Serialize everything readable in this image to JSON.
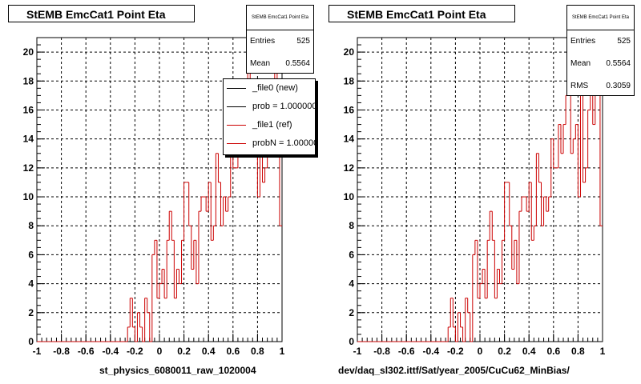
{
  "chart_data": [
    {
      "type": "bar",
      "title": "StEMB EmcCat1 Point Eta",
      "xlabel": "st_physics_6080011_raw_1020004",
      "ylabel": "",
      "xlim": [
        -1,
        1
      ],
      "ylim": [
        0,
        21
      ],
      "x_ticks": [
        "-1",
        "-0.8",
        "-0.6",
        "-0.4",
        "-0.2",
        "0",
        "0.2",
        "0.4",
        "0.6",
        "0.8",
        "1"
      ],
      "y_ticks": [
        "0",
        "2",
        "4",
        "6",
        "8",
        "10",
        "12",
        "14",
        "16",
        "18",
        "20"
      ],
      "grid": true,
      "bin_width": 0.02,
      "x": [
        -0.99,
        -0.97,
        -0.95,
        -0.93,
        -0.91,
        -0.89,
        -0.87,
        -0.85,
        -0.83,
        -0.81,
        -0.79,
        -0.77,
        -0.75,
        -0.73,
        -0.71,
        -0.69,
        -0.67,
        -0.65,
        -0.63,
        -0.61,
        -0.59,
        -0.57,
        -0.55,
        -0.53,
        -0.51,
        -0.49,
        -0.47,
        -0.45,
        -0.43,
        -0.41,
        -0.39,
        -0.37,
        -0.35,
        -0.33,
        -0.31,
        -0.29,
        -0.27,
        -0.25,
        -0.23,
        -0.21,
        -0.19,
        -0.17,
        -0.15,
        -0.13,
        -0.11,
        -0.09,
        -0.07,
        -0.05,
        -0.03,
        -0.01,
        0.01,
        0.03,
        0.05,
        0.07,
        0.09,
        0.11,
        0.13,
        0.15,
        0.17,
        0.19,
        0.21,
        0.23,
        0.25,
        0.27,
        0.29,
        0.31,
        0.33,
        0.35,
        0.37,
        0.39,
        0.41,
        0.43,
        0.45,
        0.47,
        0.49,
        0.51,
        0.53,
        0.55,
        0.57,
        0.59,
        0.61,
        0.63,
        0.65,
        0.67,
        0.69,
        0.71,
        0.73,
        0.75,
        0.77,
        0.79,
        0.81,
        0.83,
        0.85,
        0.87,
        0.89,
        0.91,
        0.93,
        0.95,
        0.97,
        0.99
      ],
      "series": [
        {
          "name": "_file1 (ref)",
          "color": "#cc0000",
          "values": [
            0,
            0,
            0,
            0,
            0,
            0,
            0,
            0,
            0,
            0,
            0,
            0,
            0,
            0,
            0,
            0,
            0,
            0,
            0,
            0,
            0,
            0,
            0,
            0,
            0,
            0,
            0,
            0,
            0,
            0,
            0,
            0,
            0,
            0,
            0,
            0,
            0,
            1,
            3,
            1,
            0,
            2,
            1,
            0,
            3,
            2,
            0,
            6,
            7,
            3,
            4,
            5,
            3,
            7,
            9,
            7,
            3,
            5,
            4,
            7,
            11,
            11,
            8,
            5,
            7,
            4,
            9,
            10,
            10,
            9,
            11,
            7,
            8,
            13,
            11,
            8,
            10,
            9,
            10,
            14,
            12,
            12,
            15,
            13,
            15,
            17,
            19,
            13,
            14,
            15,
            10,
            18,
            11,
            12,
            16,
            18,
            15,
            20,
            17,
            8
          ]
        }
      ],
      "stats": {
        "header": "StEMB EmcCat1 Point Eta",
        "entries_label": "Entries",
        "entries_value": "525",
        "mean_label": "Mean",
        "mean_value": "0.5564"
      },
      "legend": [
        {
          "label": "_file0 (new)",
          "color": "#000000"
        },
        {
          "label": "prob = 1.000000",
          "color": "#000000"
        },
        {
          "label": "_file1 (ref)",
          "color": "#cc0000"
        },
        {
          "label": "probN = 1.000000",
          "color": "#cc0000"
        }
      ]
    },
    {
      "type": "bar",
      "title": "StEMB EmcCat1 Point Eta",
      "xlabel": "dev/daq_sl302.ittf/Sat/year_2005/CuCu62_MinBias/",
      "ylabel": "",
      "xlim": [
        -1,
        1
      ],
      "ylim": [
        0,
        21
      ],
      "x_ticks": [
        "-1",
        "-0.8",
        "-0.6",
        "-0.4",
        "-0.2",
        "0",
        "0.2",
        "0.4",
        "0.6",
        "0.8",
        "1"
      ],
      "y_ticks": [
        "0",
        "2",
        "4",
        "6",
        "8",
        "10",
        "12",
        "14",
        "16",
        "18",
        "20"
      ],
      "grid": true,
      "bin_width": 0.02,
      "x": [
        -0.99,
        -0.97,
        -0.95,
        -0.93,
        -0.91,
        -0.89,
        -0.87,
        -0.85,
        -0.83,
        -0.81,
        -0.79,
        -0.77,
        -0.75,
        -0.73,
        -0.71,
        -0.69,
        -0.67,
        -0.65,
        -0.63,
        -0.61,
        -0.59,
        -0.57,
        -0.55,
        -0.53,
        -0.51,
        -0.49,
        -0.47,
        -0.45,
        -0.43,
        -0.41,
        -0.39,
        -0.37,
        -0.35,
        -0.33,
        -0.31,
        -0.29,
        -0.27,
        -0.25,
        -0.23,
        -0.21,
        -0.19,
        -0.17,
        -0.15,
        -0.13,
        -0.11,
        -0.09,
        -0.07,
        -0.05,
        -0.03,
        -0.01,
        0.01,
        0.03,
        0.05,
        0.07,
        0.09,
        0.11,
        0.13,
        0.15,
        0.17,
        0.19,
        0.21,
        0.23,
        0.25,
        0.27,
        0.29,
        0.31,
        0.33,
        0.35,
        0.37,
        0.39,
        0.41,
        0.43,
        0.45,
        0.47,
        0.49,
        0.51,
        0.53,
        0.55,
        0.57,
        0.59,
        0.61,
        0.63,
        0.65,
        0.67,
        0.69,
        0.71,
        0.73,
        0.75,
        0.77,
        0.79,
        0.81,
        0.83,
        0.85,
        0.87,
        0.89,
        0.91,
        0.93,
        0.95,
        0.97,
        0.99
      ],
      "series": [
        {
          "name": "_file1 (ref)",
          "color": "#cc0000",
          "values": [
            0,
            0,
            0,
            0,
            0,
            0,
            0,
            0,
            0,
            0,
            0,
            0,
            0,
            0,
            0,
            0,
            0,
            0,
            0,
            0,
            0,
            0,
            0,
            0,
            0,
            0,
            0,
            0,
            0,
            0,
            0,
            0,
            0,
            0,
            0,
            0,
            0,
            1,
            3,
            1,
            0,
            2,
            1,
            0,
            3,
            2,
            0,
            6,
            7,
            3,
            4,
            5,
            3,
            7,
            9,
            7,
            3,
            5,
            4,
            7,
            11,
            11,
            8,
            5,
            7,
            4,
            9,
            10,
            10,
            9,
            11,
            7,
            8,
            13,
            11,
            8,
            10,
            9,
            10,
            14,
            12,
            12,
            15,
            13,
            15,
            17,
            19,
            13,
            14,
            15,
            10,
            18,
            11,
            12,
            16,
            18,
            15,
            20,
            17,
            8
          ]
        }
      ],
      "stats": {
        "header": "StEMB EmcCat1 Point Eta",
        "entries_label": "Entries",
        "entries_value": "525",
        "mean_label": "Mean",
        "mean_value": "0.5564",
        "rms_label": "RMS",
        "rms_value": "0.3059"
      }
    }
  ]
}
